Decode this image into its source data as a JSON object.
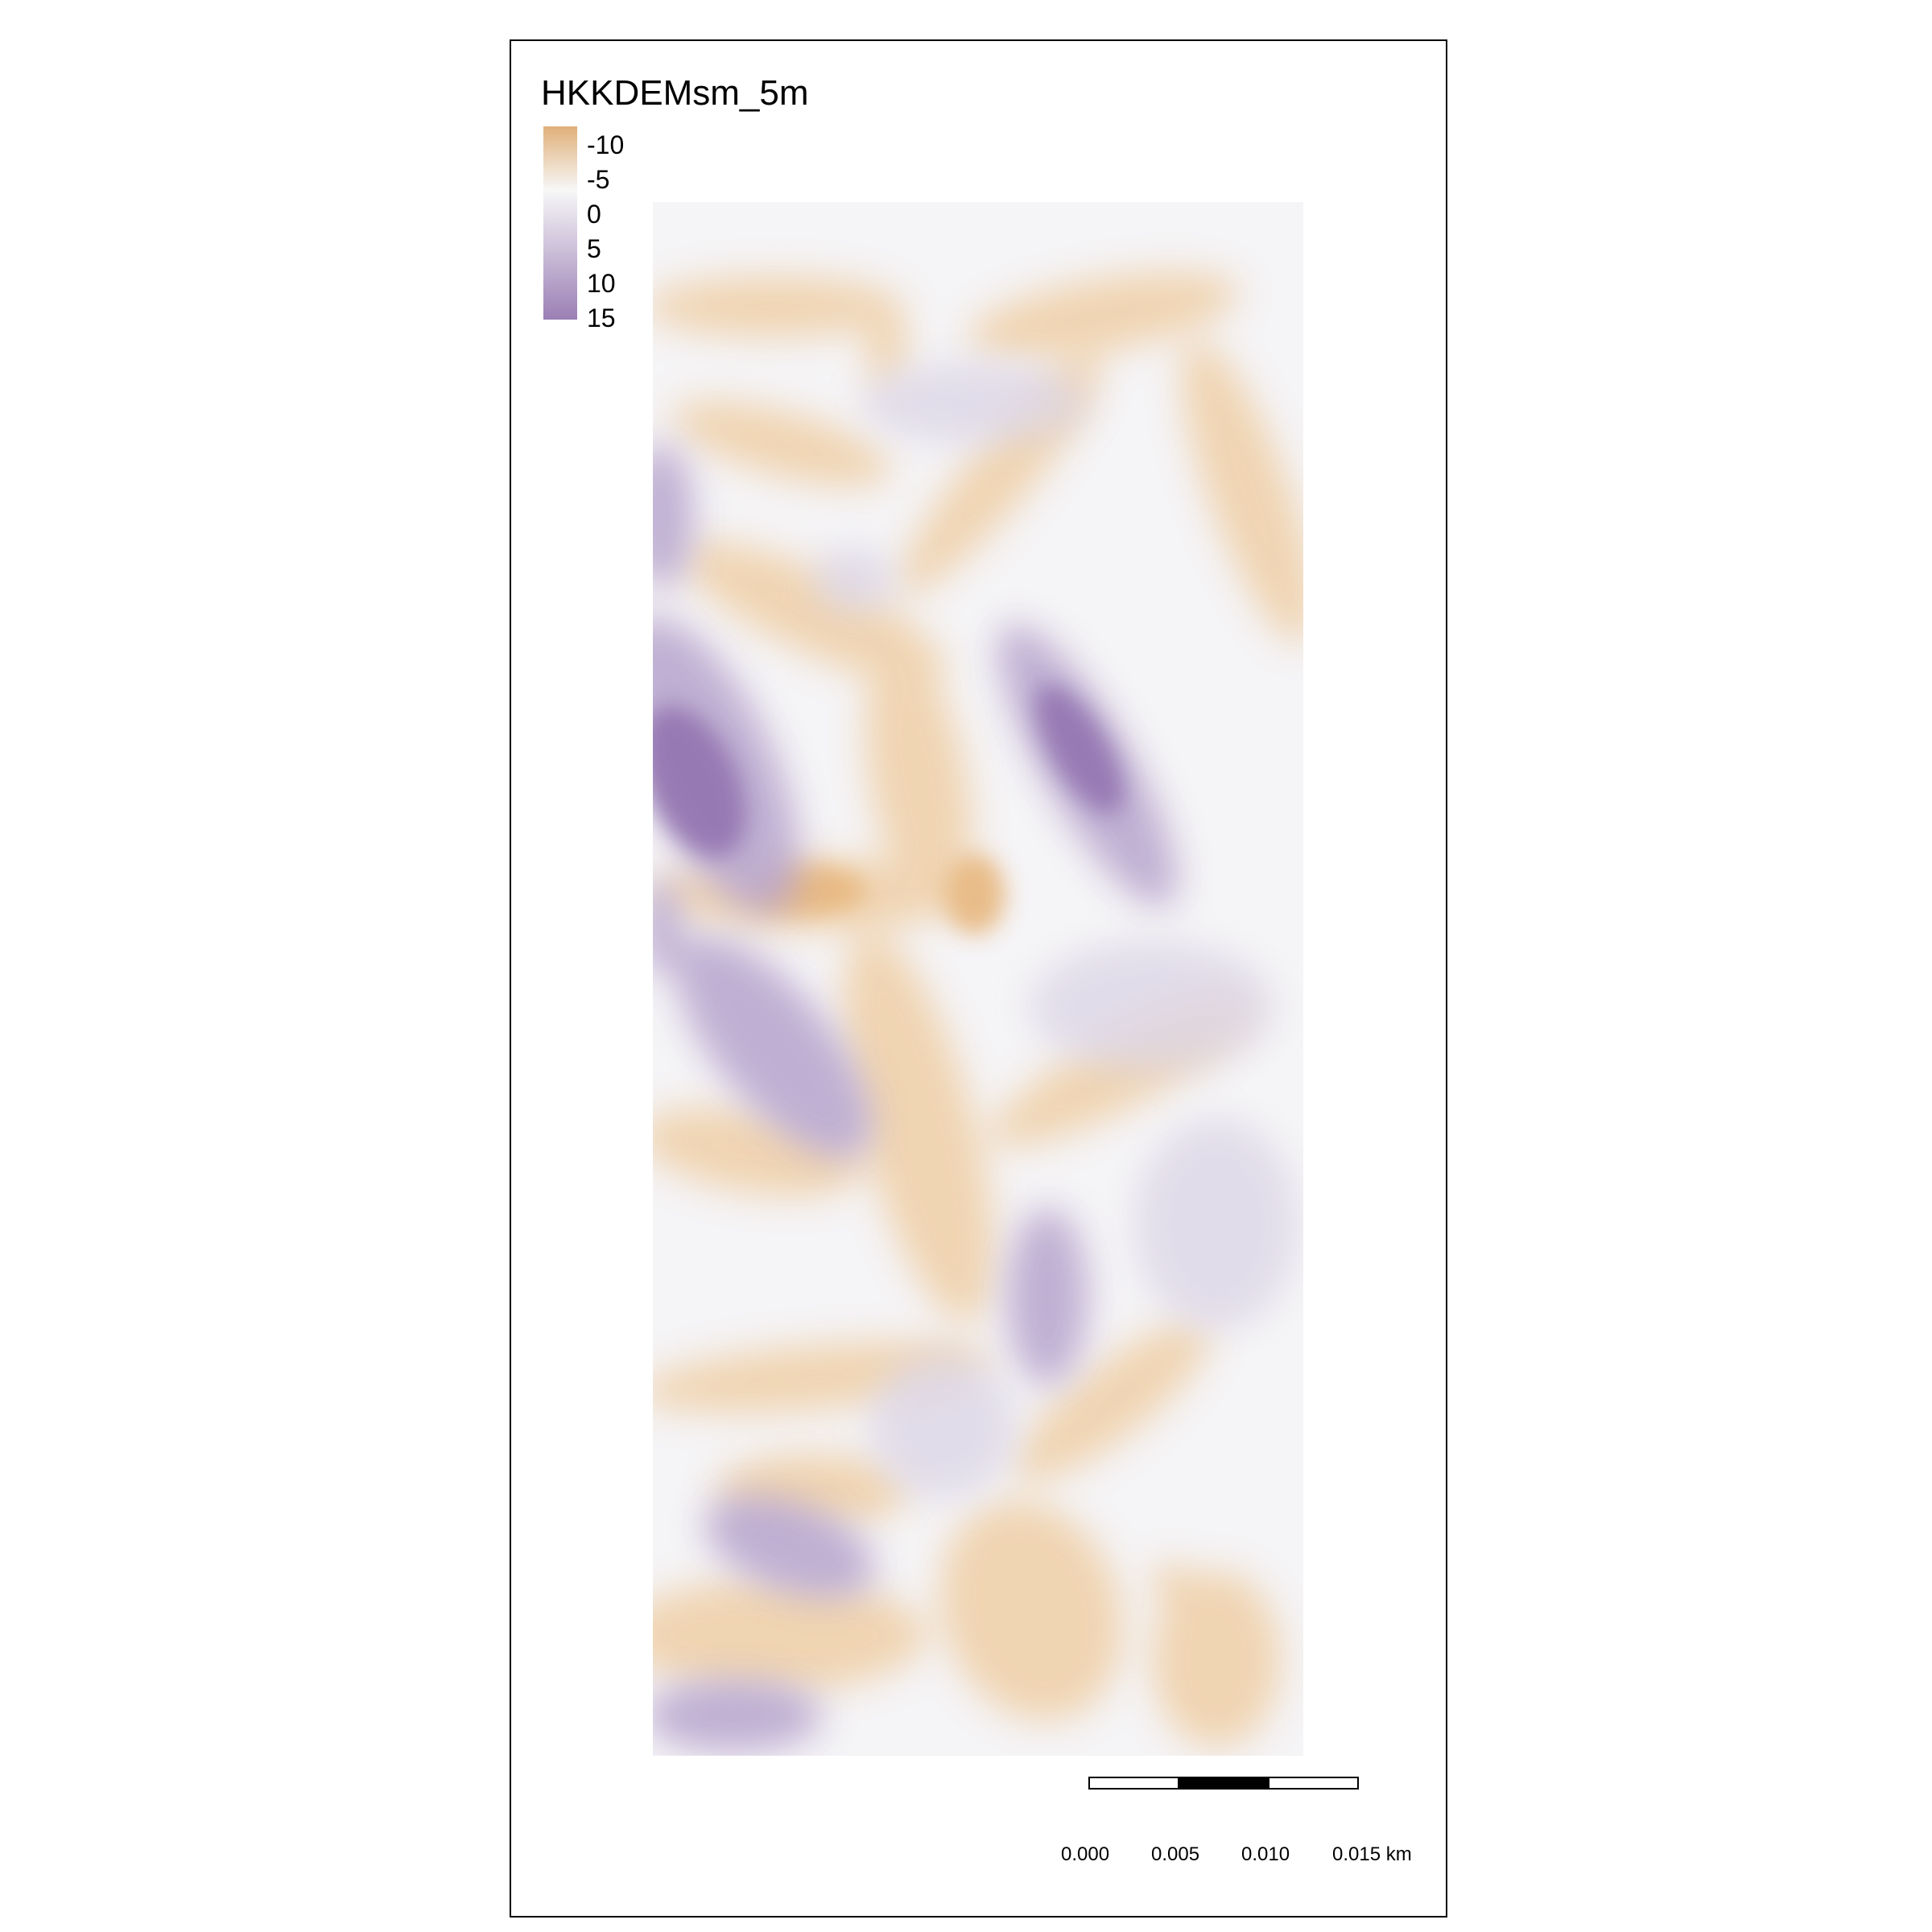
{
  "legend": {
    "title": "HKKDEMsm_5m",
    "labels": [
      "-10",
      "-5",
      "0",
      "5",
      "10",
      "15"
    ],
    "colors": {
      "low": "#e0b07a",
      "mid": "#f7f7f7",
      "high": "#9b7fb5"
    }
  },
  "scalebar": {
    "labels": [
      "0.000",
      "0.005",
      "0.010",
      "0.015 km"
    ]
  }
}
